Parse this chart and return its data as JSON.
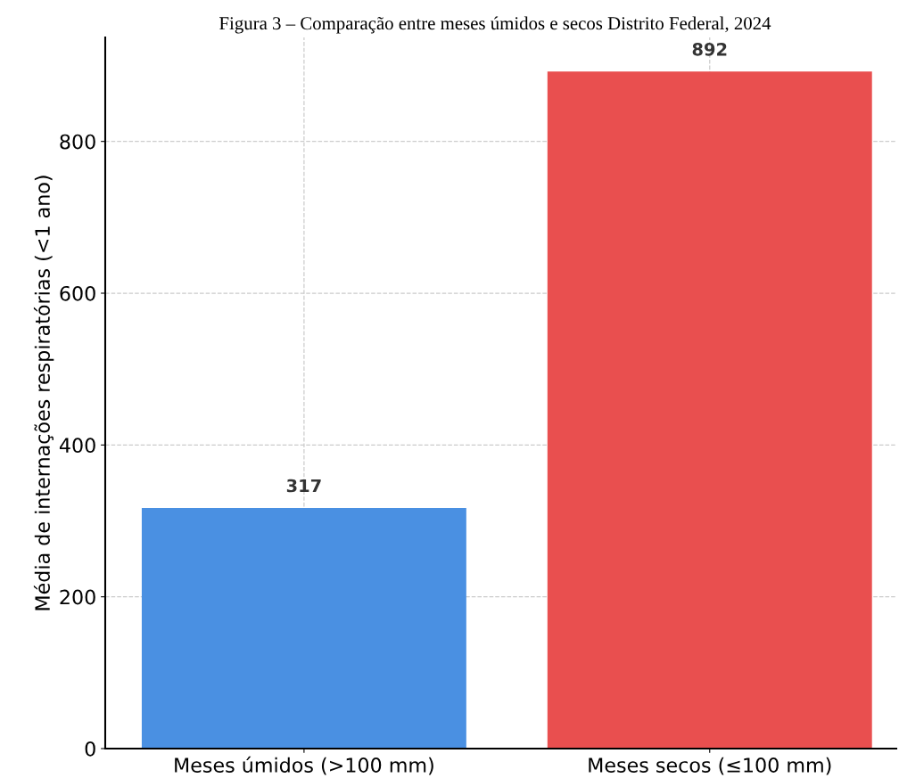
{
  "chart_data": {
    "type": "bar",
    "title": "Figura 3 – Comparação entre meses úmidos e secos Distrito Federal, 2024",
    "ylabel": "Média de internações respiratórias (<1 ano)",
    "categories": [
      "Meses úmidos (>100 mm)",
      "Meses secos (≤100 mm)"
    ],
    "values": [
      317,
      892
    ],
    "colors": [
      "#4a90e2",
      "#e94f4f"
    ],
    "ylim": [
      0,
      937
    ],
    "yticks": [
      0,
      200,
      400,
      600,
      800
    ],
    "grid": true,
    "data_labels": true
  }
}
